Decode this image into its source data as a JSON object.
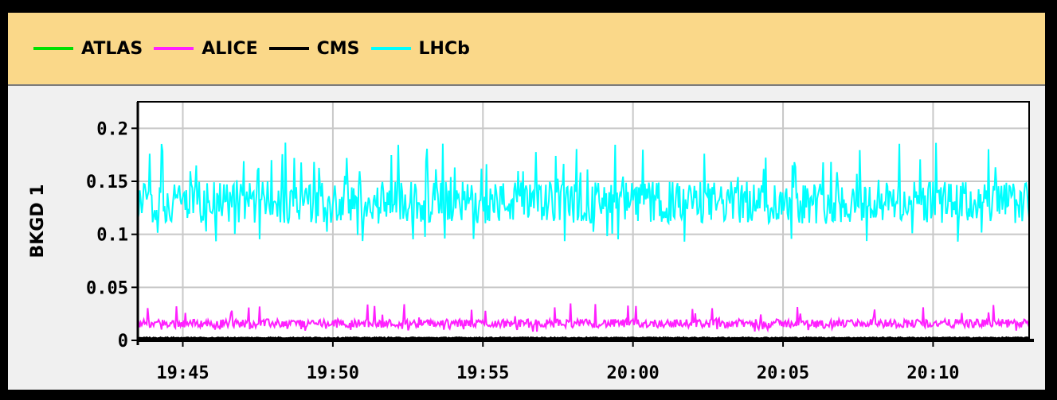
{
  "chart_data": {
    "type": "line",
    "ylabel": "BKGD 1",
    "xlabel": "",
    "title": "",
    "x_ticks": [
      "19:45",
      "19:50",
      "19:55",
      "20:00",
      "20:05",
      "20:10"
    ],
    "x_range_minutes": [
      43.5,
      73.2
    ],
    "x_tick_minutes": [
      45,
      50,
      55,
      60,
      65,
      70
    ],
    "ylim": [
      0,
      0.225
    ],
    "y_ticks": [
      0,
      0.05,
      0.1,
      0.15,
      0.2
    ],
    "y_tick_labels": [
      "0",
      "0.05",
      "0.1",
      "0.15",
      "0.2"
    ],
    "grid": true,
    "legend_position": "top",
    "series": [
      {
        "name": "ATLAS",
        "color": "#00e000",
        "mean": 0.0005,
        "min": 0.0,
        "max": 0.002
      },
      {
        "name": "ALICE",
        "color": "#ff20ff",
        "mean": 0.016,
        "min": 0.008,
        "max": 0.035
      },
      {
        "name": "CMS",
        "color": "#000000",
        "mean": 0.002,
        "min": 0.0,
        "max": 0.003
      },
      {
        "name": "LHCb",
        "color": "#00ffff",
        "mean": 0.13,
        "min": 0.093,
        "max": 0.187
      }
    ]
  }
}
